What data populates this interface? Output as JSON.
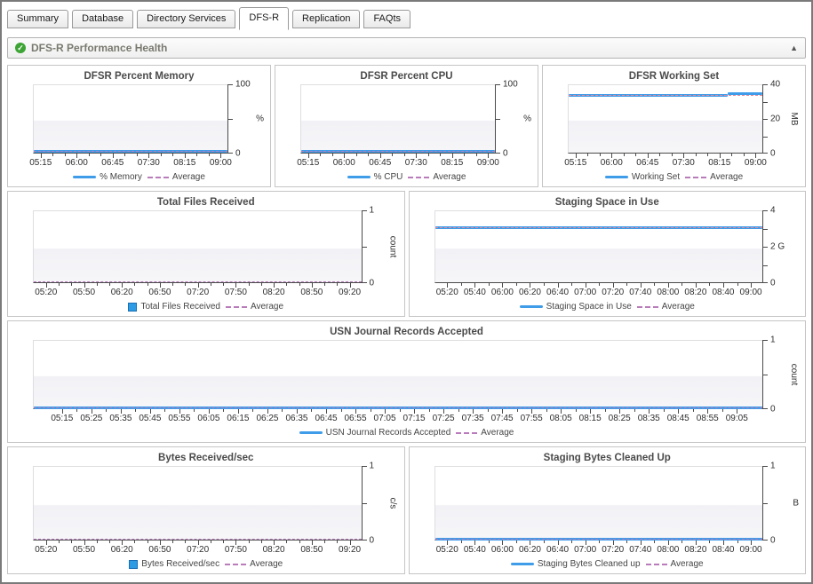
{
  "tabs": {
    "items": [
      {
        "label": "Summary",
        "active": false
      },
      {
        "label": "Database",
        "active": false
      },
      {
        "label": "Directory Services",
        "active": false
      },
      {
        "label": "DFS-R",
        "active": true
      },
      {
        "label": "Replication",
        "active": false
      },
      {
        "label": "FAQts",
        "active": false
      }
    ]
  },
  "section": {
    "title": "DFS-R Performance Health",
    "status_icon": "green-check-icon",
    "collapse_icon": "up-triangle-icon",
    "collapse_glyph": "▲",
    "check_glyph": "✓"
  },
  "colors": {
    "series_blue": "#3f9ce9",
    "series_box_fill": "#2d9ce5",
    "series_box_border": "#1a6fb5",
    "average_purple": "#b87cba",
    "average_on_line": "#e8879b",
    "axis": "#4a4a4a"
  },
  "chart_data": [
    {
      "type": "line",
      "title": "DFSR Percent Memory",
      "ylabel": "%",
      "unit_vertical": false,
      "ylim": [
        0,
        100
      ],
      "y_ticks": [
        {
          "f": 0,
          "label": "0"
        },
        {
          "f": 0.5,
          "label": ""
        },
        {
          "f": 1,
          "label": "100"
        }
      ],
      "x": [
        "05:15",
        "06:00",
        "06:45",
        "07:30",
        "08:15",
        "09:00"
      ],
      "x_minor_per_gap": 2,
      "series": [
        {
          "name": "% Memory",
          "values": [
            1.5,
            1.5,
            1.5,
            1.5,
            1.5,
            1.5
          ]
        }
      ],
      "average_value": 1.5,
      "legend": [
        {
          "swatch": "line",
          "label": "% Memory"
        },
        {
          "swatch": "dash",
          "label": "Average"
        }
      ],
      "render": {
        "show_line": true,
        "segments": [
          {
            "x0": 0,
            "x1": 1,
            "f": 0.025
          }
        ],
        "avg_f": 0.025
      }
    },
    {
      "type": "line",
      "title": "DFSR Percent CPU",
      "ylabel": "%",
      "unit_vertical": false,
      "ylim": [
        0,
        100
      ],
      "y_ticks": [
        {
          "f": 0,
          "label": "0"
        },
        {
          "f": 0.5,
          "label": ""
        },
        {
          "f": 1,
          "label": "100"
        }
      ],
      "x": [
        "05:15",
        "06:00",
        "06:45",
        "07:30",
        "08:15",
        "09:00"
      ],
      "x_minor_per_gap": 2,
      "series": [
        {
          "name": "% CPU",
          "values": [
            1,
            1,
            1,
            1,
            1,
            1
          ]
        }
      ],
      "average_value": 1,
      "legend": [
        {
          "swatch": "line",
          "label": "% CPU"
        },
        {
          "swatch": "dash",
          "label": "Average"
        }
      ],
      "render": {
        "show_line": true,
        "segments": [
          {
            "x0": 0,
            "x1": 1,
            "f": 0.02
          }
        ],
        "avg_f": 0.02
      }
    },
    {
      "type": "line",
      "title": "DFSR Working Set",
      "ylabel": "MB",
      "unit_vertical": true,
      "ylim": [
        0,
        40
      ],
      "y_ticks": [
        {
          "f": 0,
          "label": "0"
        },
        {
          "f": 0.25,
          "label": ""
        },
        {
          "f": 0.5,
          "label": "20"
        },
        {
          "f": 0.75,
          "label": ""
        },
        {
          "f": 1,
          "label": "40"
        }
      ],
      "x": [
        "05:15",
        "06:00",
        "06:45",
        "07:30",
        "08:15",
        "09:00"
      ],
      "x_minor_per_gap": 2,
      "series": [
        {
          "name": "Working Set",
          "values": [
            34,
            34,
            34,
            34,
            34,
            35.5
          ]
        }
      ],
      "average_value": 34.2,
      "legend": [
        {
          "swatch": "line",
          "label": "Working Set"
        },
        {
          "swatch": "dash",
          "label": "Average"
        }
      ],
      "render": {
        "show_line": true,
        "segments": [
          {
            "x0": 0,
            "x1": 0.82,
            "f": 0.85
          },
          {
            "x0": 0.82,
            "x1": 1,
            "f": 0.888
          }
        ],
        "avg_f": 0.85
      }
    },
    {
      "type": "bar",
      "title": "Total Files Received",
      "ylabel": "count",
      "unit_vertical": true,
      "ylim": [
        0,
        1
      ],
      "y_ticks": [
        {
          "f": 0,
          "label": "0"
        },
        {
          "f": 0.5,
          "label": ""
        },
        {
          "f": 1,
          "label": "1"
        }
      ],
      "x": [
        "05:20",
        "05:50",
        "06:20",
        "06:50",
        "07:20",
        "07:50",
        "08:20",
        "08:50",
        "09:20"
      ],
      "x_minor_per_gap": 2,
      "series": [
        {
          "name": "Total Files Received",
          "values": [
            0,
            0,
            0,
            0,
            0,
            0,
            0,
            0,
            0
          ]
        }
      ],
      "average_value": 0,
      "legend": [
        {
          "swatch": "box",
          "label": "Total Files Received"
        },
        {
          "swatch": "dash",
          "label": "Average"
        }
      ],
      "render": {
        "show_line": false,
        "segments": [],
        "avg_f": 0.01
      }
    },
    {
      "type": "line",
      "title": "Staging Space in Use",
      "ylabel": "",
      "unit_vertical": false,
      "ylim": [
        0,
        4
      ],
      "y_ticks": [
        {
          "f": 0,
          "label": "0"
        },
        {
          "f": 0.25,
          "label": ""
        },
        {
          "f": 0.5,
          "label": "2 G"
        },
        {
          "f": 0.75,
          "label": ""
        },
        {
          "f": 1,
          "label": "4"
        }
      ],
      "x": [
        "05:20",
        "05:40",
        "06:00",
        "06:20",
        "06:40",
        "07:00",
        "07:20",
        "07:40",
        "08:00",
        "08:20",
        "08:40",
        "09:00"
      ],
      "x_minor_per_gap": 1,
      "series": [
        {
          "name": "Staging Space in Use",
          "values": [
            3.1,
            3.1,
            3.1,
            3.1,
            3.1,
            3.1,
            3.1,
            3.1,
            3.1,
            3.1,
            3.1,
            3.1
          ]
        }
      ],
      "average_value": 3.1,
      "legend": [
        {
          "swatch": "line",
          "label": "Staging Space in Use"
        },
        {
          "swatch": "dash",
          "label": "Average"
        }
      ],
      "render": {
        "show_line": true,
        "segments": [
          {
            "x0": 0,
            "x1": 1,
            "f": 0.775
          }
        ],
        "avg_f": 0.775
      }
    },
    {
      "type": "line",
      "title": "USN Journal Records Accepted",
      "ylabel": "count",
      "unit_vertical": true,
      "ylim": [
        0,
        1
      ],
      "y_ticks": [
        {
          "f": 0,
          "label": "0"
        },
        {
          "f": 0.5,
          "label": ""
        },
        {
          "f": 1,
          "label": "1"
        }
      ],
      "x": [
        "05:15",
        "05:25",
        "05:35",
        "05:45",
        "05:55",
        "06:05",
        "06:15",
        "06:25",
        "06:35",
        "06:45",
        "06:55",
        "07:05",
        "07:15",
        "07:25",
        "07:35",
        "07:45",
        "07:55",
        "08:05",
        "08:15",
        "08:25",
        "08:35",
        "08:45",
        "08:55",
        "09:05"
      ],
      "x_minor_per_gap": 1,
      "series": [
        {
          "name": "USN Journal Records Accepted",
          "values": [
            0,
            0,
            0,
            0,
            0,
            0,
            0,
            0,
            0,
            0,
            0,
            0,
            0,
            0,
            0,
            0,
            0,
            0,
            0,
            0,
            0,
            0,
            0,
            0
          ]
        }
      ],
      "average_value": 0,
      "legend": [
        {
          "swatch": "line",
          "label": "USN Journal Records Accepted"
        },
        {
          "swatch": "dash",
          "label": "Average"
        }
      ],
      "render": {
        "show_line": true,
        "segments": [
          {
            "x0": 0,
            "x1": 1,
            "f": 0.012
          }
        ],
        "avg_f": 0.012
      }
    },
    {
      "type": "bar",
      "title": "Bytes Received/sec",
      "ylabel": "c/s",
      "unit_vertical": true,
      "ylim": [
        0,
        1
      ],
      "y_ticks": [
        {
          "f": 0,
          "label": "0"
        },
        {
          "f": 0.5,
          "label": ""
        },
        {
          "f": 1,
          "label": "1"
        }
      ],
      "x": [
        "05:20",
        "05:50",
        "06:20",
        "06:50",
        "07:20",
        "07:50",
        "08:20",
        "08:50",
        "09:20"
      ],
      "x_minor_per_gap": 2,
      "series": [
        {
          "name": "Bytes Received/sec",
          "values": [
            0,
            0,
            0,
            0,
            0,
            0,
            0,
            0,
            0
          ]
        }
      ],
      "average_value": 0,
      "legend": [
        {
          "swatch": "box",
          "label": "Bytes Received/sec"
        },
        {
          "swatch": "dash",
          "label": "Average"
        }
      ],
      "render": {
        "show_line": false,
        "segments": [],
        "avg_f": 0.01
      }
    },
    {
      "type": "line",
      "title": "Staging Bytes Cleaned Up",
      "ylabel": "B",
      "unit_vertical": false,
      "ylim": [
        0,
        1
      ],
      "y_ticks": [
        {
          "f": 0,
          "label": "0"
        },
        {
          "f": 0.5,
          "label": ""
        },
        {
          "f": 1,
          "label": "1"
        }
      ],
      "x": [
        "05:20",
        "05:40",
        "06:00",
        "06:20",
        "06:40",
        "07:00",
        "07:20",
        "07:40",
        "08:00",
        "08:20",
        "08:40",
        "09:00"
      ],
      "x_minor_per_gap": 1,
      "series": [
        {
          "name": "Staging Bytes Cleaned up",
          "values": [
            0,
            0,
            0,
            0,
            0,
            0,
            0,
            0,
            0,
            0,
            0,
            0
          ]
        }
      ],
      "average_value": 0,
      "legend": [
        {
          "swatch": "line",
          "label": "Staging Bytes Cleaned up"
        },
        {
          "swatch": "dash",
          "label": "Average"
        }
      ],
      "render": {
        "show_line": true,
        "segments": [
          {
            "x0": 0,
            "x1": 1,
            "f": 0.012
          }
        ],
        "avg_f": 0.012
      }
    }
  ]
}
